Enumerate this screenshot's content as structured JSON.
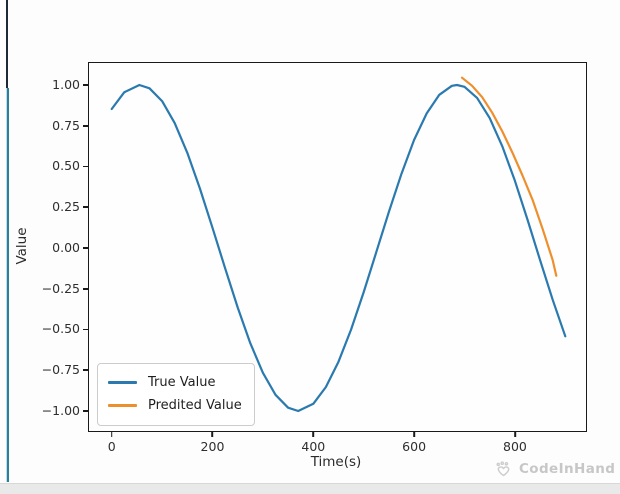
{
  "page": {
    "background": "#fdfdfd",
    "bottom_bar_color": "#e9e9e9",
    "left_bar": {
      "track_color": "#1d2935",
      "thumb_color": "#2e7d99",
      "thumb_highlight": "#b9e2e8"
    }
  },
  "watermark": {
    "label": "CodeInHand",
    "icon": "paw-heart-logo",
    "color": "#c7c7c7"
  },
  "chart_data": {
    "type": "line",
    "title": "",
    "xlabel": "Time(s)",
    "ylabel": "Value",
    "xlim": [
      -45,
      941
    ],
    "ylim": [
      -1.123,
      1.135
    ],
    "grid": false,
    "x_ticks": [
      0,
      200,
      400,
      600,
      800
    ],
    "x_tick_labels": [
      "0",
      "200",
      "400",
      "600",
      "800"
    ],
    "y_ticks": [
      1.0,
      0.75,
      0.5,
      0.25,
      0.0,
      -0.25,
      -0.5,
      -0.75,
      -1.0
    ],
    "y_tick_labels": [
      "1.00",
      "0.75",
      "0.50",
      "0.25",
      "0.00",
      "−0.25",
      "−0.50",
      "−0.75",
      "−1.00"
    ],
    "legend": {
      "position": "lower left",
      "entries": [
        "True Value",
        "Predited Value"
      ]
    },
    "series": [
      {
        "name": "True Value",
        "color": "#2a7aaf",
        "x": [
          0,
          25,
          55,
          75,
          100,
          125,
          150,
          175,
          200,
          225,
          250,
          275,
          300,
          325,
          350,
          370,
          400,
          425,
          450,
          475,
          500,
          525,
          550,
          575,
          600,
          625,
          650,
          675,
          685,
          700,
          725,
          750,
          775,
          800,
          825,
          850,
          875,
          900
        ],
        "y": [
          0.853,
          0.956,
          1.0,
          0.98,
          0.901,
          0.766,
          0.584,
          0.365,
          0.124,
          -0.124,
          -0.365,
          -0.584,
          -0.766,
          -0.901,
          -0.98,
          -1.0,
          -0.956,
          -0.853,
          -0.698,
          -0.5,
          -0.271,
          -0.025,
          0.222,
          0.456,
          0.663,
          0.826,
          0.94,
          0.995,
          1.0,
          0.989,
          0.921,
          0.797,
          0.624,
          0.412,
          0.174,
          -0.075,
          -0.318,
          -0.542
        ]
      },
      {
        "name": "Predited Value",
        "color": "#ee8f2e",
        "x": [
          695,
          715,
          735,
          755,
          775,
          795,
          815,
          835,
          855,
          875,
          882
        ],
        "y": [
          1.045,
          0.995,
          0.925,
          0.83,
          0.715,
          0.585,
          0.445,
          0.295,
          0.115,
          -0.075,
          -0.17
        ]
      }
    ]
  }
}
